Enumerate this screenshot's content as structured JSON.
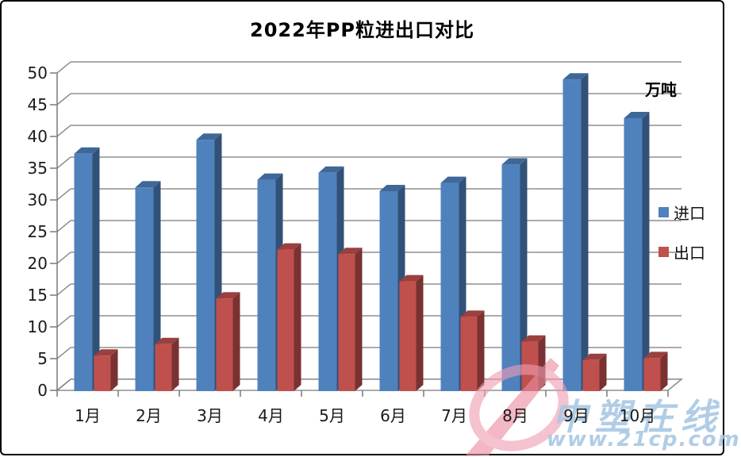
{
  "chart_data": {
    "type": "bar",
    "style": "3d-clustered",
    "title": "2022年PP粒进出口对比",
    "unit_label": "万吨",
    "categories": [
      "1月",
      "2月",
      "3月",
      "4月",
      "5月",
      "6月",
      "7月",
      "8月",
      "9月",
      "10月"
    ],
    "series": [
      {
        "name": "进口",
        "color": "#4f81bd",
        "values": [
          37.4,
          32.1,
          39.6,
          33.3,
          34.4,
          31.5,
          32.8,
          35.7,
          49.1,
          43.0
        ]
      },
      {
        "name": "出口",
        "color": "#c0504d",
        "values": [
          5.6,
          7.4,
          14.6,
          22.3,
          21.6,
          17.3,
          11.7,
          7.8,
          4.9,
          5.2
        ]
      }
    ],
    "ylim": [
      0,
      50
    ],
    "ytick_step": 5,
    "grid": true,
    "legend_position": "right",
    "grid_color": "#8f8f8f",
    "axis_color": "#808080",
    "label_color": "#1a1a1a"
  },
  "watermark": {
    "brand": "中塑在线",
    "url": "www.21cp.com",
    "text_color": "#abc9e4",
    "logo_color": "#ee90a7"
  }
}
